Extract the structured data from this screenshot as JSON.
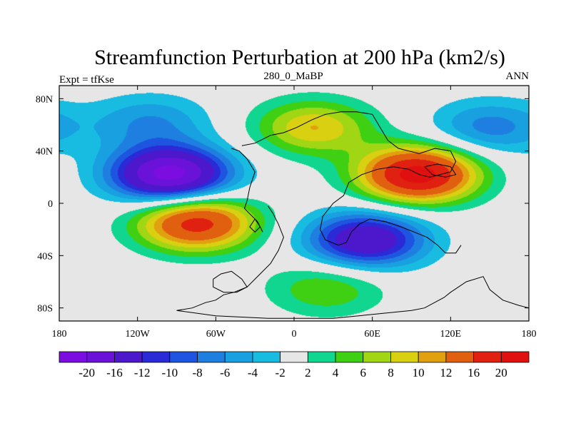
{
  "chart_data": {
    "type": "heatmap",
    "title": "Streamfunction Perturbation at 200 hPa (km2/s)",
    "left_string": "Expt = tfKse",
    "center_string": "280_0_MaBP",
    "right_string": "ANN",
    "xlim": [
      -180,
      180
    ],
    "ylim": [
      -90,
      90
    ],
    "x_ticks": [
      {
        "value": -180,
        "label": "180"
      },
      {
        "value": -120,
        "label": "120W"
      },
      {
        "value": -60,
        "label": "60W"
      },
      {
        "value": 0,
        "label": "0"
      },
      {
        "value": 60,
        "label": "60E"
      },
      {
        "value": 120,
        "label": "120E"
      },
      {
        "value": 180,
        "label": "180"
      }
    ],
    "y_ticks": [
      {
        "value": 80,
        "label": "80N"
      },
      {
        "value": 40,
        "label": "40N"
      },
      {
        "value": 0,
        "label": "0"
      },
      {
        "value": -40,
        "label": "40S"
      },
      {
        "value": -80,
        "label": "80S"
      }
    ],
    "contour_levels": [
      -20,
      -16,
      -12,
      -10,
      -8,
      -6,
      -4,
      -2,
      2,
      4,
      6,
      8,
      10,
      12,
      16,
      20
    ],
    "colorbar_labels": [
      "-20",
      "-16",
      "-12",
      "-10",
      "-8",
      "-6",
      "-4",
      "-2",
      "2",
      "4",
      "6",
      "8",
      "10",
      "12",
      "16",
      "20"
    ],
    "colors": [
      "#7b0de0",
      "#6a12d8",
      "#4d17cc",
      "#2a2ad7",
      "#1e55e0",
      "#1f7fe0",
      "#18a0e0",
      "#18bce0",
      "#e6e6e6",
      "#10d690",
      "#3fd014",
      "#a0d614",
      "#d8d010",
      "#e0a010",
      "#e06010",
      "#e02010",
      "#e01010"
    ],
    "field_extrema": [
      {
        "lon": -95,
        "lat": 22,
        "value": -22,
        "label": "low"
      },
      {
        "lon": 95,
        "lat": 22,
        "value": 22,
        "label": "high"
      },
      {
        "lon": -75,
        "lat": -15,
        "value": 18,
        "label": "high"
      },
      {
        "lon": 55,
        "lat": -28,
        "value": -16,
        "label": "low"
      },
      {
        "lon": 15,
        "lat": 58,
        "value": 10,
        "label": "high"
      },
      {
        "lon": -110,
        "lat": 62,
        "value": -6,
        "label": "low"
      },
      {
        "lon": 150,
        "lat": 58,
        "value": -7,
        "label": "low"
      },
      {
        "lon": 25,
        "lat": -65,
        "value": 6,
        "label": "high"
      }
    ]
  }
}
